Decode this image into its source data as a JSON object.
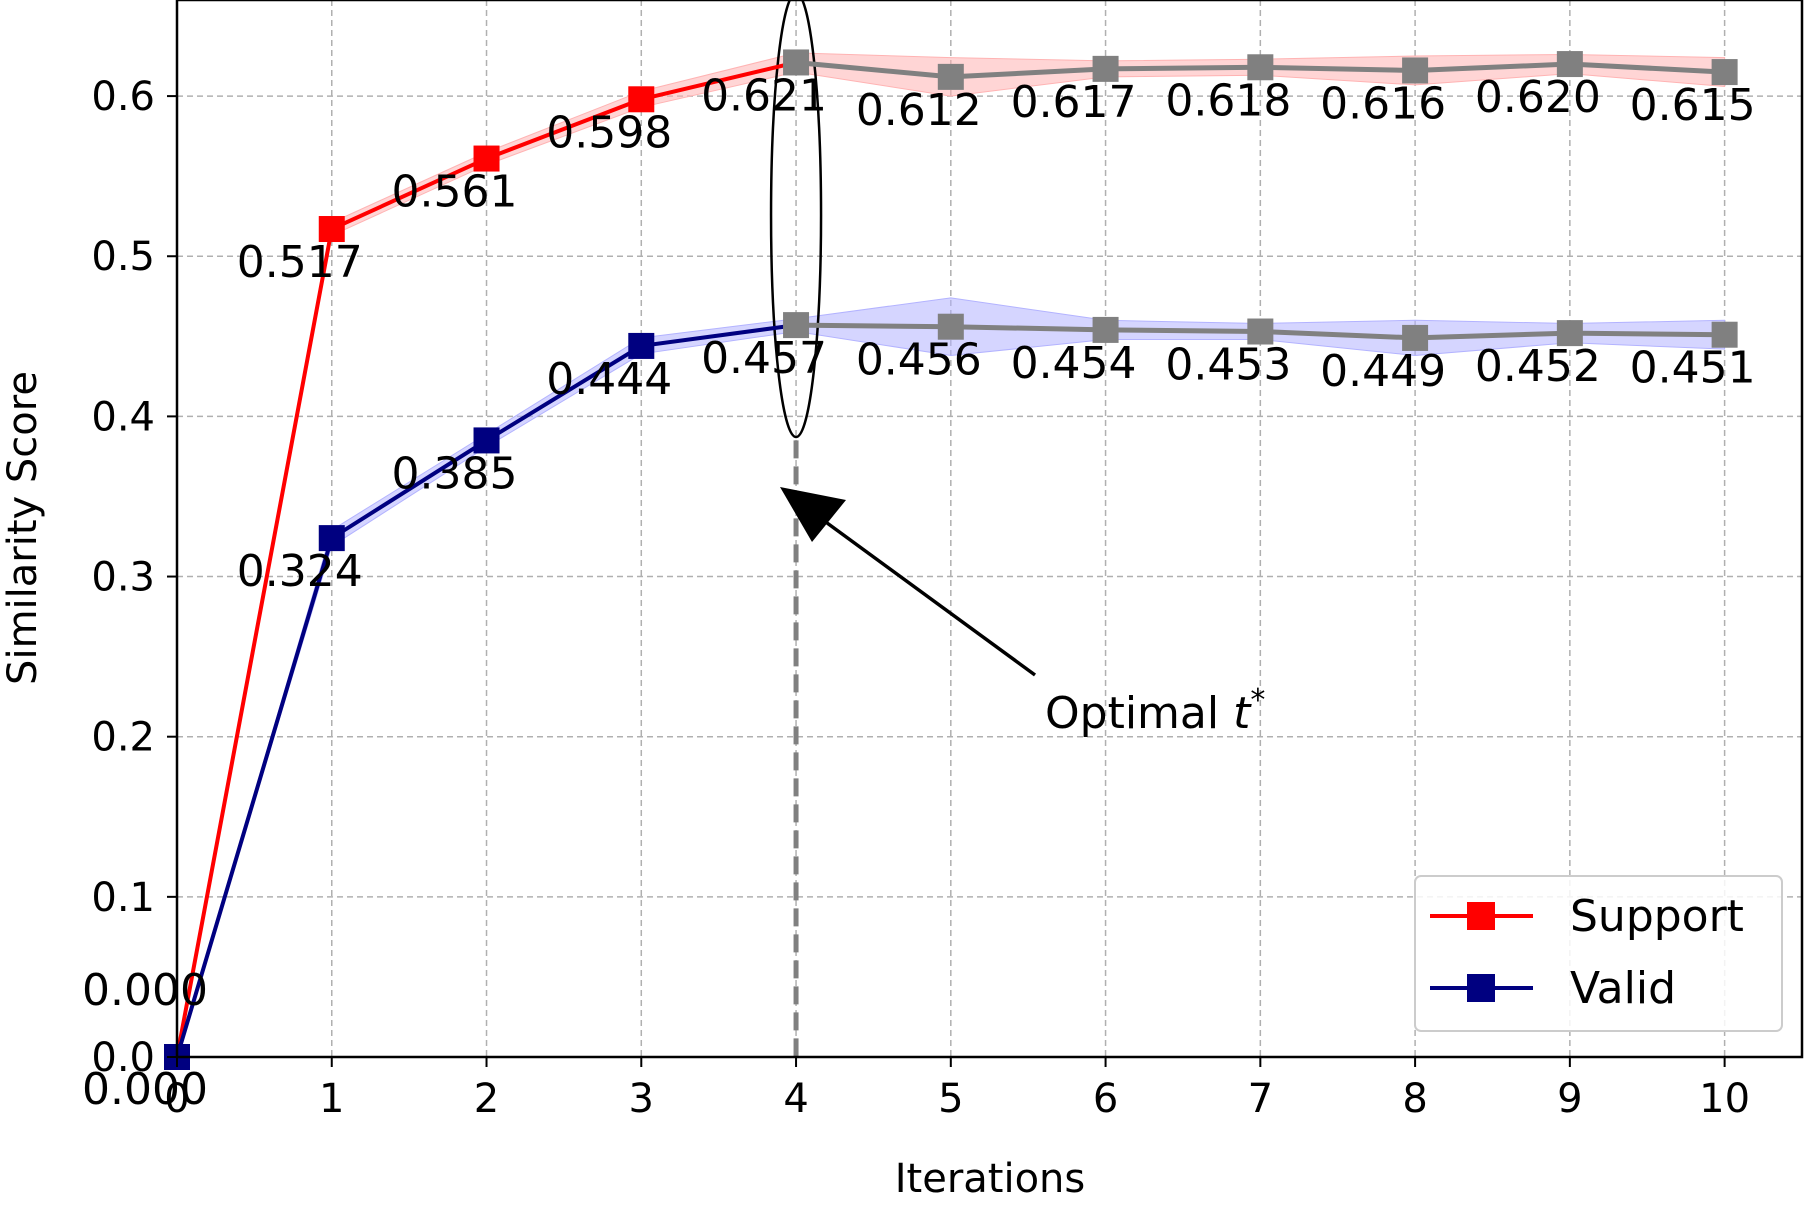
{
  "chart_data": {
    "type": "line",
    "title": "",
    "xlabel": "Iterations",
    "ylabel": "Similarity Score",
    "xlim": [
      0,
      10.5
    ],
    "ylim": [
      0,
      0.66
    ],
    "x_ticks": [
      "0",
      "1",
      "2",
      "3",
      "4",
      "5",
      "6",
      "7",
      "8",
      "9",
      "10"
    ],
    "y_ticks": [
      "0.0",
      "0.1",
      "0.2",
      "0.3",
      "0.4",
      "0.5",
      "0.6"
    ],
    "grid": true,
    "legend_position": "bottom-right",
    "series": [
      {
        "name": "Support",
        "color": "#ff0000",
        "band_color": "#ffb3b3",
        "after_optimal_color": "#808080",
        "x": [
          0,
          1,
          2,
          3,
          4,
          5,
          6,
          7,
          8,
          9,
          10
        ],
        "values": [
          0.0,
          0.517,
          0.561,
          0.598,
          0.621,
          0.612,
          0.617,
          0.618,
          0.616,
          0.62,
          0.615
        ],
        "labels": [
          "0.000",
          "0.517",
          "0.561",
          "0.598",
          "0.621",
          "0.612",
          "0.617",
          "0.618",
          "0.616",
          "0.620",
          "0.615"
        ],
        "band_halfwidth": [
          0.0,
          0.004,
          0.004,
          0.005,
          0.006,
          0.012,
          0.005,
          0.005,
          0.009,
          0.006,
          0.009
        ]
      },
      {
        "name": "Valid",
        "color": "#000080",
        "band_color": "#b3b3ff",
        "after_optimal_color": "#808080",
        "x": [
          0,
          1,
          2,
          3,
          4,
          5,
          6,
          7,
          8,
          9,
          10
        ],
        "values": [
          0.0,
          0.324,
          0.385,
          0.444,
          0.457,
          0.456,
          0.454,
          0.453,
          0.449,
          0.452,
          0.451
        ],
        "labels": [
          "0.000",
          "0.324",
          "0.385",
          "0.444",
          "0.457",
          "0.456",
          "0.454",
          "0.453",
          "0.449",
          "0.452",
          "0.451"
        ],
        "band_halfwidth": [
          0.0,
          0.005,
          0.004,
          0.005,
          0.004,
          0.018,
          0.006,
          0.005,
          0.011,
          0.006,
          0.009
        ]
      }
    ],
    "optimal_iteration": 4,
    "annotation": {
      "text": "Optimal ",
      "symbol": "t",
      "superscript": "*"
    }
  }
}
